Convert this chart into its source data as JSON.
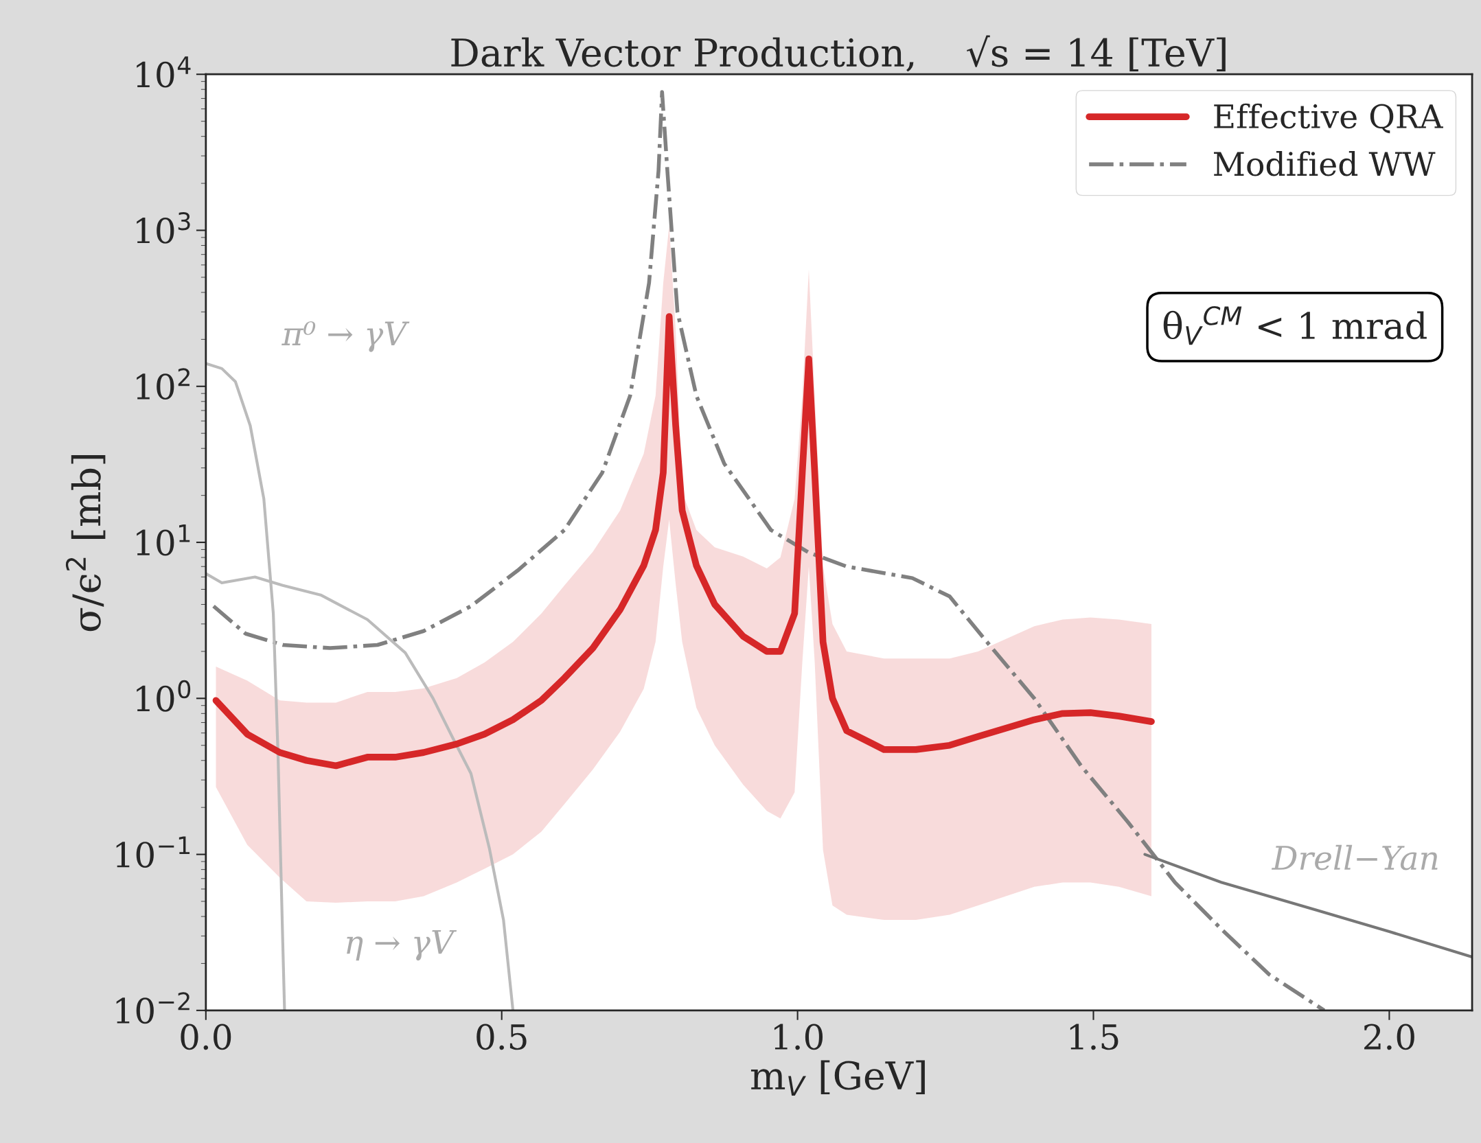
{
  "chart_data": {
    "type": "line",
    "title": "Dark Vector Production,    √s = 14 [TeV]",
    "xlabel": "m$_{V}$ [GeV]",
    "ylabel": "σ/ϵ$^{2}$ [mb]",
    "log": "y",
    "xlim": [
      0,
      2.14
    ],
    "ylim": [
      0.01,
      10000
    ],
    "xticks": [
      {
        "value": 0,
        "label": "0.0"
      },
      0.5,
      {
        "value": 1,
        "label": "1.0"
      },
      1.5,
      {
        "value": 2,
        "label": "2.0"
      }
    ],
    "yticks": [
      {
        "value": 0.01,
        "label": "10$^{−2}$"
      },
      {
        "value": 0.1,
        "label": "10$^{−1}$"
      },
      {
        "value": 1,
        "label": "10$^{0}$"
      },
      {
        "value": 10,
        "label": "10$^{1}$"
      },
      {
        "value": 100,
        "label": "10$^{2}$"
      },
      {
        "value": 1000,
        "label": "10$^{3}$"
      },
      {
        "value": 10000,
        "label": "10$^{4}$"
      }
    ],
    "grid": false,
    "legend": "top right",
    "marker": "none",
    "series": [
      {
        "name": "Effective QRA",
        "color": "#d62728",
        "line_style": "solid",
        "x": [
          0.017,
          0.07,
          0.125,
          0.17,
          0.22,
          0.273,
          0.32,
          0.368,
          0.424,
          0.471,
          0.519,
          0.567,
          0.606,
          0.654,
          0.7,
          0.74,
          0.76,
          0.773,
          0.783,
          0.794,
          0.805,
          0.829,
          0.86,
          0.908,
          0.948,
          0.971,
          0.995,
          1.008,
          1.019,
          1.029,
          1.043,
          1.059,
          1.083,
          1.146,
          1.2,
          1.257,
          1.305,
          1.4,
          1.448,
          1.495,
          1.543,
          1.598
        ],
        "values": [
          0.97,
          0.59,
          0.45,
          0.4,
          0.37,
          0.42,
          0.42,
          0.45,
          0.51,
          0.59,
          0.73,
          0.97,
          1.35,
          2.1,
          3.7,
          7.1,
          12,
          28,
          280,
          56,
          16,
          7.1,
          4.0,
          2.5,
          2.0,
          2.0,
          3.5,
          28,
          150,
          28,
          2.3,
          1.0,
          0.62,
          0.47,
          0.47,
          0.5,
          0.57,
          0.73,
          0.8,
          0.81,
          0.77,
          0.71
        ],
        "lower": [
          0.27,
          0.115,
          0.071,
          0.05,
          0.049,
          0.05,
          0.05,
          0.054,
          0.066,
          0.081,
          0.1,
          0.14,
          0.21,
          0.35,
          0.61,
          1.15,
          2.3,
          7,
          14,
          5.4,
          2.3,
          0.87,
          0.5,
          0.28,
          0.19,
          0.17,
          0.25,
          1.7,
          7,
          1.7,
          0.107,
          0.047,
          0.041,
          0.038,
          0.038,
          0.041,
          0.047,
          0.062,
          0.066,
          0.066,
          0.062,
          0.054
        ],
        "upper": [
          1.6,
          1.3,
          0.97,
          0.94,
          0.94,
          1.1,
          1.1,
          1.16,
          1.35,
          1.7,
          2.3,
          3.5,
          5.3,
          8.7,
          16,
          37,
          87,
          460,
          1070,
          230,
          21,
          12,
          9.3,
          8.1,
          6.8,
          8,
          19,
          87,
          560,
          87,
          7,
          3.0,
          2.0,
          1.8,
          1.8,
          1.8,
          2.0,
          2.9,
          3.2,
          3.3,
          3.2,
          3.0
        ]
      },
      {
        "name": "Modified WW",
        "color": "#808080",
        "line_style": "dashdot",
        "x": [
          0.013,
          0.067,
          0.13,
          0.21,
          0.29,
          0.368,
          0.448,
          0.527,
          0.606,
          0.67,
          0.717,
          0.749,
          0.765,
          0.771,
          0.78,
          0.797,
          0.829,
          0.876,
          0.955,
          1.019,
          1.083,
          1.194,
          1.257,
          1.32,
          1.4,
          1.479,
          1.559,
          1.638,
          1.717,
          1.797,
          1.89
        ],
        "values": [
          3.9,
          2.6,
          2.2,
          2.1,
          2.2,
          2.7,
          3.9,
          6.6,
          12,
          28,
          87,
          460,
          2400,
          7700,
          2400,
          300,
          87,
          32,
          12,
          8.6,
          7,
          5.9,
          4.5,
          2.3,
          1.0,
          0.37,
          0.16,
          0.066,
          0.033,
          0.017,
          0.01
        ]
      },
      {
        "color": "#777777",
        "line_style": "solid",
        "x": [
          1.587,
          1.717,
          1.876,
          2.0,
          2.14
        ],
        "values": [
          0.1,
          0.066,
          0.044,
          0.032,
          0.022
        ]
      },
      {
        "color": "#bbbbbb",
        "line_style": "solid",
        "x": [
          0,
          0.027,
          0.05,
          0.075,
          0.098,
          0.114,
          0.122,
          0.13,
          0.133
        ],
        "values": [
          140,
          130,
          107,
          56,
          19,
          3.5,
          0.43,
          0.027,
          0.01
        ]
      },
      {
        "color": "#bbbbbb",
        "line_style": "solid",
        "x": [
          0,
          0.027,
          0.083,
          0.13,
          0.194,
          0.273,
          0.337,
          0.384,
          0.416,
          0.448,
          0.479,
          0.503,
          0.519
        ],
        "values": [
          6.3,
          5.5,
          6.0,
          5.3,
          4.6,
          3.2,
          1.96,
          1.0,
          0.57,
          0.33,
          0.11,
          0.038,
          0.01
        ]
      }
    ],
    "annotations": [
      "π⁰ → γV",
      "η → γV",
      "Drell−Yan",
      "θ$_{V}$$^{CM}$ < 1 mrad"
    ]
  }
}
